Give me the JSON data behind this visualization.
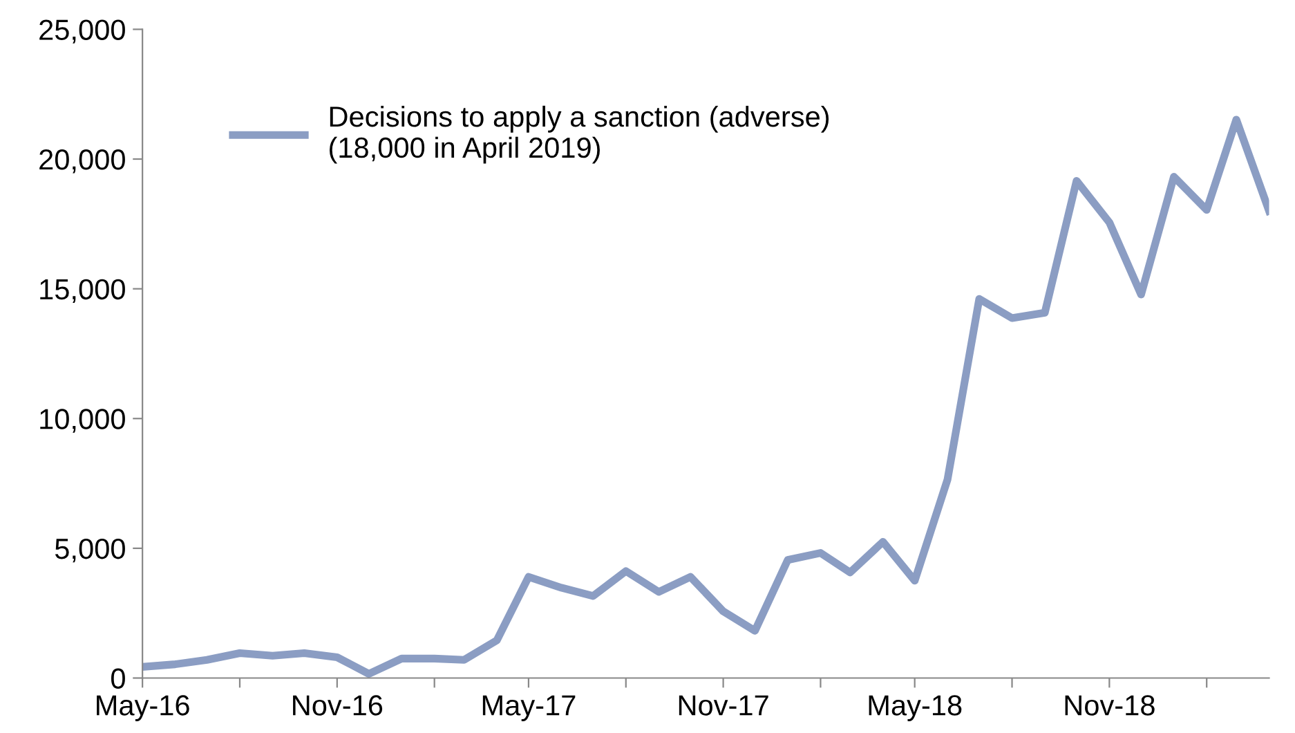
{
  "chart_data": {
    "type": "line",
    "legend": "top left",
    "grid": false,
    "marker": "none",
    "line_style": "solid",
    "x": [
      "2016-05",
      "2016-06",
      "2016-07",
      "2016-08",
      "2016-09",
      "2016-10",
      "2016-11",
      "2016-12",
      "2017-01",
      "2017-02",
      "2017-03",
      "2017-04",
      "2017-05",
      "2017-06",
      "2017-07",
      "2017-08",
      "2017-09",
      "2017-10",
      "2017-11",
      "2017-12",
      "2018-01",
      "2018-02",
      "2018-03",
      "2018-04",
      "2018-05",
      "2018-06",
      "2018-07",
      "2018-08",
      "2018-09",
      "2018-10",
      "2018-11",
      "2018-12",
      "2019-01",
      "2019-02",
      "2019-03",
      "2019-04"
    ],
    "series": [
      {
        "name": "Decisions to apply a sanction (adverse)\n(18,000 in April 2019)",
        "color": "#8b9dc3",
        "values": [
          430,
          530,
          700,
          960,
          860,
          960,
          800,
          160,
          750,
          750,
          700,
          1450,
          3900,
          3480,
          3160,
          4120,
          3320,
          3900,
          2570,
          1820,
          4550,
          4820,
          4070,
          5250,
          3750,
          7650,
          14610,
          13870,
          14080,
          19160,
          17560,
          14780,
          19320,
          18040,
          21520,
          18000
        ]
      }
    ],
    "xlim": [
      "2016-05",
      "2019-04"
    ],
    "xticks": [
      {
        "value": "2016-05",
        "label": "May-16"
      },
      {
        "value": "2016-08",
        "label": null
      },
      {
        "value": "2016-11",
        "label": "Nov-16"
      },
      {
        "value": "2017-02",
        "label": null
      },
      {
        "value": "2017-05",
        "label": "May-17"
      },
      {
        "value": "2017-08",
        "label": null
      },
      {
        "value": "2017-11",
        "label": "Nov-17"
      },
      {
        "value": "2018-02",
        "label": null
      },
      {
        "value": "2018-05",
        "label": "May-18"
      },
      {
        "value": "2018-08",
        "label": null
      },
      {
        "value": "2018-11",
        "label": "Nov-18"
      },
      {
        "value": "2019-02",
        "label": null
      }
    ],
    "ylim": [
      0,
      25000
    ],
    "yticks": [
      {
        "value": 0,
        "label": "0"
      },
      {
        "value": 5000,
        "label": "5,000"
      },
      {
        "value": 10000,
        "label": "10,000"
      },
      {
        "value": 15000,
        "label": "15,000"
      },
      {
        "value": 20000,
        "label": "20,000"
      },
      {
        "value": 25000,
        "label": "25,000"
      }
    ]
  }
}
